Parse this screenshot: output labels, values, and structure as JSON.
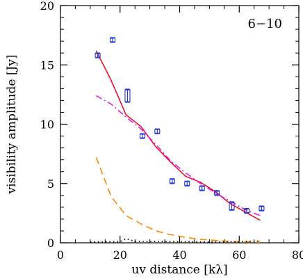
{
  "chart_data": {
    "type": "scatter",
    "title": "",
    "panel_label": "6−10",
    "xlabel": "uv distance [kλ]",
    "ylabel": "visibility amplitude [Jy]",
    "xlim": [
      0,
      80
    ],
    "ylim": [
      0,
      20
    ],
    "xticks": [
      0,
      20,
      40,
      60,
      80
    ],
    "yticks": [
      0,
      5,
      10,
      15,
      20
    ],
    "x_minor_step": 5,
    "y_minor_step": 1,
    "grid": false,
    "legend": "none",
    "points": {
      "color": "#2233cc",
      "x": [
        12.5,
        17.5,
        22.5,
        27.5,
        32.5,
        37.5,
        42.5,
        47.5,
        52.5,
        57.5,
        62.5,
        67.5
      ],
      "y": [
        15.8,
        17.1,
        12.4,
        9.0,
        9.4,
        5.2,
        5.0,
        4.6,
        4.2,
        3.1,
        2.7,
        2.9
      ],
      "err": [
        0.15,
        0.15,
        0.5,
        0.15,
        0.15,
        0.15,
        0.15,
        0.15,
        0.15,
        0.3,
        0.15,
        0.15
      ]
    },
    "series": [
      {
        "style": "solid",
        "color": "#e8102a",
        "x": [
          12,
          17,
          22,
          27,
          32,
          37,
          42,
          47,
          52,
          57,
          62,
          67
        ],
        "y": [
          16.2,
          13.7,
          10.8,
          9.8,
          8.1,
          6.8,
          5.6,
          5.1,
          4.3,
          3.3,
          2.6,
          1.9
        ]
      },
      {
        "style": "dashdot",
        "color": "#e020e0",
        "x": [
          12,
          17,
          22,
          27,
          32,
          37,
          42,
          47,
          52,
          57,
          62,
          67
        ],
        "y": [
          12.4,
          11.7,
          10.6,
          9.6,
          8.3,
          6.9,
          5.9,
          5.0,
          4.2,
          3.5,
          2.8,
          2.3
        ]
      },
      {
        "style": "dashed",
        "color": "#ff8800",
        "x": [
          12,
          17,
          22,
          27,
          32,
          37,
          42,
          47,
          52,
          57,
          62,
          67
        ],
        "y": [
          7.2,
          3.9,
          2.3,
          1.6,
          1.0,
          0.7,
          0.45,
          0.3,
          0.2,
          0.12,
          0.08,
          0.05
        ]
      },
      {
        "style": "dotted",
        "color": "#000000",
        "x": [
          10,
          20,
          22,
          25,
          30,
          40,
          50,
          60,
          67
        ],
        "y": [
          0.08,
          0.1,
          0.35,
          0.12,
          0.12,
          0.1,
          0.08,
          0.1,
          0.15
        ]
      }
    ]
  }
}
